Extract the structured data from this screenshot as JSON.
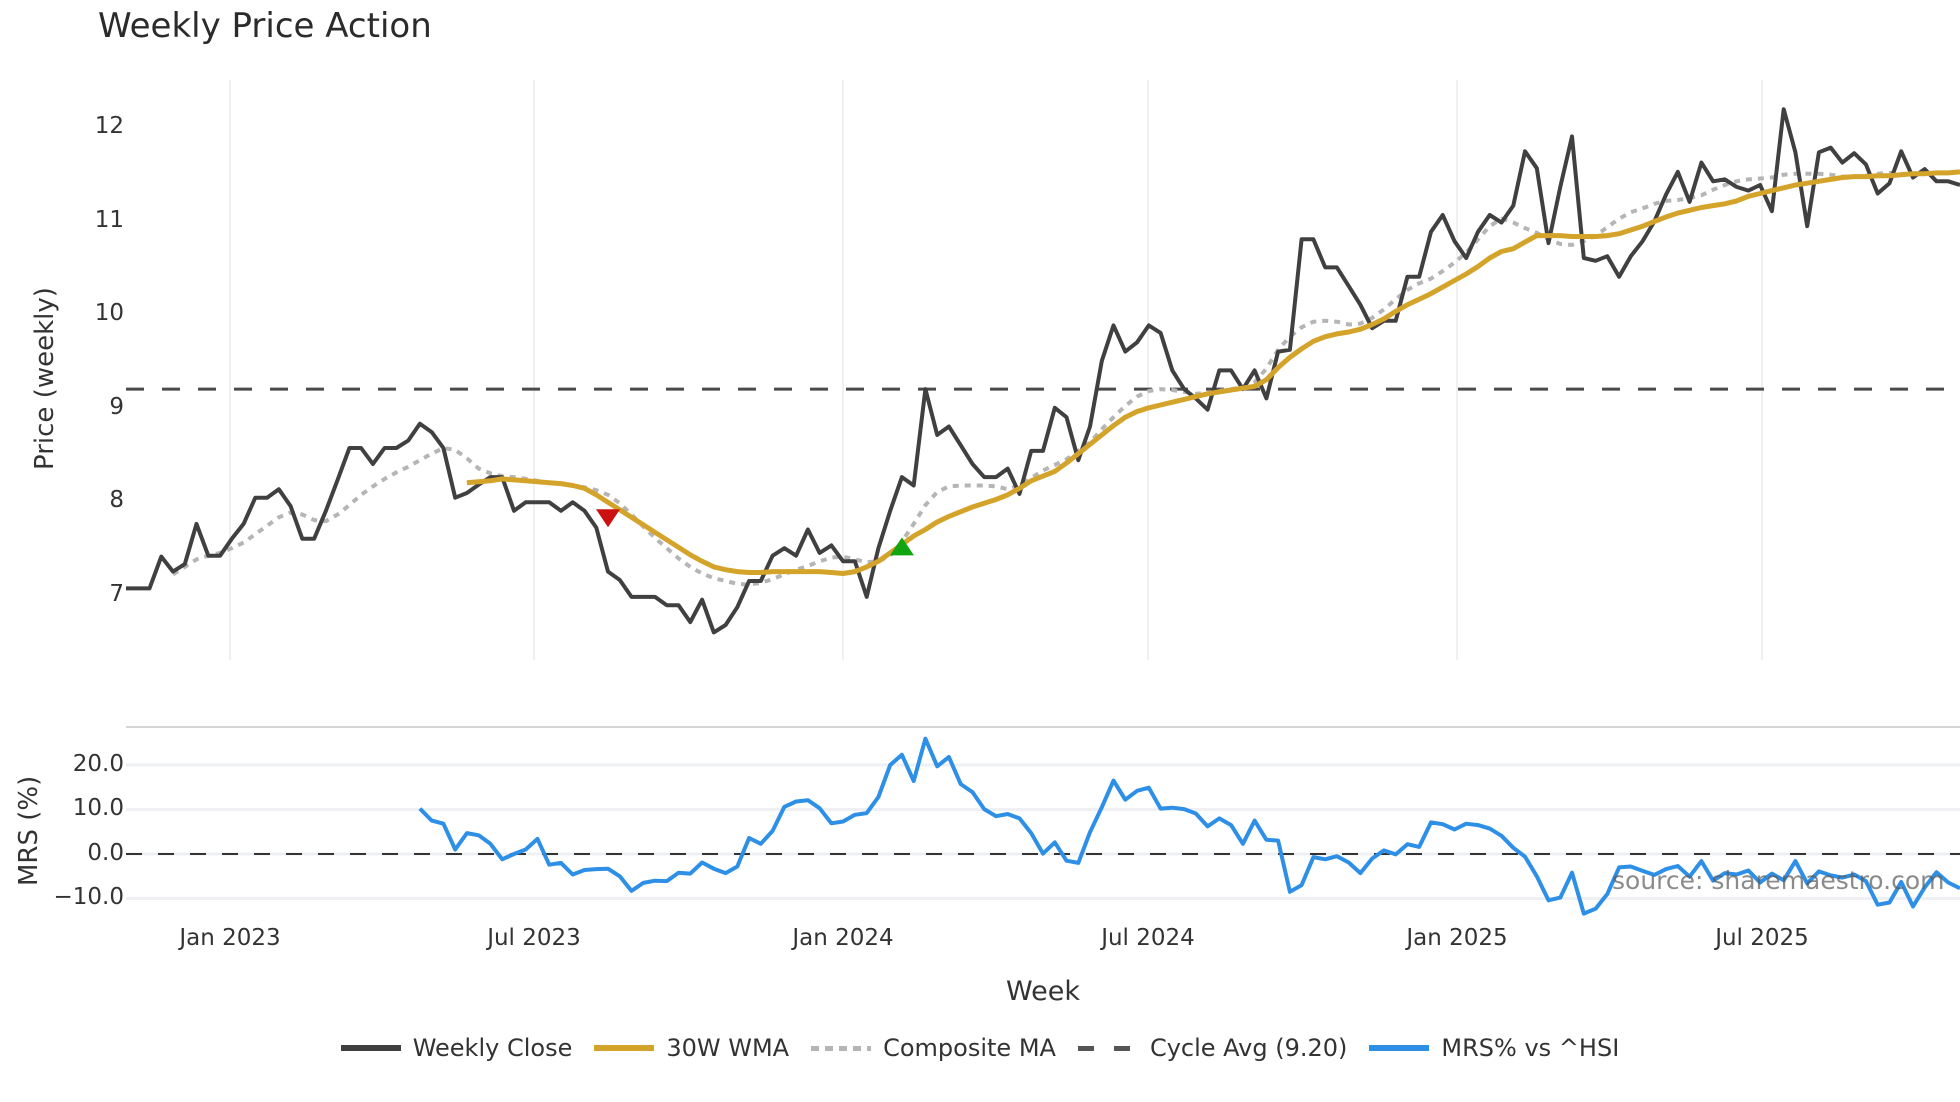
{
  "title": "Weekly Price Action",
  "watermark": "source: sharemaestro.com",
  "colors": {
    "close": "#404040",
    "wma": "#d4a32a",
    "composite": "#b5b5b5",
    "cycle": "#4a4a4a",
    "mrs": "#2e8fe6",
    "sell_marker": "#cc1111",
    "buy_marker": "#11a511",
    "grid": "#eef0f4"
  },
  "upper": {
    "ylabel": "Price (weekly)",
    "yticks": [
      "12",
      "11",
      "10",
      "9",
      "8",
      "7"
    ],
    "ytick_values": [
      12,
      11,
      10,
      9,
      8,
      7
    ]
  },
  "lower": {
    "ylabel": "MRS (%)",
    "yticks": [
      "20.0",
      "10.0",
      "0.0",
      "−10.0"
    ],
    "ytick_values": [
      20,
      10,
      0,
      -10
    ]
  },
  "xaxis": {
    "title": "Week",
    "ticks": [
      "Jan 2023",
      "Jul 2023",
      "Jan 2024",
      "Jul 2024",
      "Jan 2025",
      "Jul 2025"
    ]
  },
  "legend": [
    {
      "label": "Weekly Close",
      "style": "solid",
      "color": "#404040"
    },
    {
      "label": "30W WMA",
      "style": "solid",
      "color": "#d4a32a"
    },
    {
      "label": "Composite MA",
      "style": "dotted",
      "color": "#b5b5b5"
    },
    {
      "label": "Cycle Avg (9.20)",
      "style": "dashed",
      "color": "#555555"
    },
    {
      "label": "MRS% vs ^HSI",
      "style": "solid",
      "color": "#2e8fe6"
    }
  ],
  "chart_data": {
    "type": "line",
    "title": "Weekly Price Action",
    "xlabel": "Week",
    "panels": [
      {
        "name": "price",
        "ylabel": "Price (weekly)",
        "ylim": [
          6.3,
          12.5
        ],
        "x_ticks": [
          "Jan 2023",
          "Jul 2023",
          "Jan 2024",
          "Jul 2024",
          "Jan 2025",
          "Jul 2025"
        ],
        "hline": {
          "name": "Cycle Avg (9.20)",
          "value": 9.2
        },
        "markers": [
          {
            "type": "sell",
            "shape": "triangle-down",
            "index": 41,
            "value": 7.82
          },
          {
            "type": "buy",
            "shape": "triangle-up",
            "index": 66,
            "value": 7.52
          }
        ],
        "series": [
          {
            "name": "Weekly Close",
            "start_index": 0,
            "values": [
              7.07,
              7.07,
              7.07,
              7.41,
              7.25,
              7.33,
              7.76,
              7.42,
              7.42,
              7.6,
              7.76,
              8.04,
              8.04,
              8.13,
              7.95,
              7.6,
              7.6,
              7.9,
              8.23,
              8.57,
              8.57,
              8.4,
              8.57,
              8.57,
              8.65,
              8.83,
              8.74,
              8.57,
              8.04,
              8.09,
              8.18,
              8.26,
              8.26,
              7.9,
              7.99,
              7.99,
              7.99,
              7.9,
              7.99,
              7.9,
              7.72,
              7.25,
              7.16,
              6.98,
              6.98,
              6.98,
              6.89,
              6.89,
              6.71,
              6.95,
              6.6,
              6.68,
              6.87,
              7.15,
              7.15,
              7.42,
              7.5,
              7.42,
              7.7,
              7.45,
              7.53,
              7.36,
              7.36,
              6.98,
              7.5,
              7.9,
              8.26,
              8.17,
              9.2,
              8.71,
              8.8,
              8.6,
              8.4,
              8.26,
              8.26,
              8.35,
              8.08,
              8.54,
              8.54,
              9.0,
              8.9,
              8.44,
              8.8,
              9.5,
              9.88,
              9.6,
              9.7,
              9.88,
              9.8,
              9.4,
              9.2,
              9.1,
              8.98,
              9.4,
              9.4,
              9.2,
              9.4,
              9.1,
              9.6,
              9.62,
              10.8,
              10.8,
              10.5,
              10.5,
              10.3,
              10.1,
              9.85,
              9.93,
              9.93,
              10.4,
              10.4,
              10.88,
              11.06,
              10.78,
              10.6,
              10.88,
              11.06,
              10.98,
              11.16,
              11.74,
              11.56,
              10.76,
              11.36,
              11.9,
              10.6,
              10.57,
              10.62,
              10.4,
              10.62,
              10.78,
              10.99,
              11.28,
              11.52,
              11.2,
              11.62,
              11.42,
              11.44,
              11.36,
              11.32,
              11.38,
              11.1,
              12.19,
              11.73,
              10.94,
              11.73,
              11.78,
              11.62,
              11.72,
              11.6,
              11.29,
              11.4,
              11.74,
              11.46,
              11.55,
              11.42,
              11.42,
              11.38
            ]
          },
          {
            "name": "30W WMA",
            "start_index": 29,
            "values": [
              8.2,
              8.21,
              8.22,
              8.24,
              8.23,
              8.22,
              8.21,
              8.2,
              8.19,
              8.17,
              8.14,
              8.07,
              7.99,
              7.91,
              7.83,
              7.75,
              7.67,
              7.59,
              7.51,
              7.43,
              7.36,
              7.3,
              7.27,
              7.25,
              7.24,
              7.24,
              7.25,
              7.25,
              7.25,
              7.25,
              7.25,
              7.24,
              7.23,
              7.25,
              7.3,
              7.36,
              7.45,
              7.54,
              7.63,
              7.7,
              7.78,
              7.84,
              7.89,
              7.94,
              7.98,
              8.02,
              8.07,
              8.14,
              8.22,
              8.27,
              8.32,
              8.41,
              8.51,
              8.61,
              8.71,
              8.81,
              8.9,
              8.96,
              9.0,
              9.03,
              9.06,
              9.09,
              9.12,
              9.15,
              9.17,
              9.19,
              9.21,
              9.23,
              9.3,
              9.43,
              9.54,
              9.63,
              9.71,
              9.76,
              9.79,
              9.81,
              9.84,
              9.89,
              9.95,
              10.03,
              10.1,
              10.16,
              10.22,
              10.29,
              10.36,
              10.43,
              10.51,
              10.6,
              10.67,
              10.7,
              10.77,
              10.84,
              10.84,
              10.84,
              10.83,
              10.83,
              10.83,
              10.84,
              10.86,
              10.9,
              10.94,
              10.99,
              11.04,
              11.08,
              11.11,
              11.14,
              11.16,
              11.18,
              11.21,
              11.26,
              11.29,
              11.32,
              11.35,
              11.38,
              11.4,
              11.42,
              11.44,
              11.46,
              11.47,
              11.47,
              11.48,
              11.48,
              11.49,
              11.5,
              11.5,
              11.51,
              11.51,
              11.52
            ]
          },
          {
            "name": "Composite MA",
            "start_index": 4,
            "values": [
              7.22,
              7.3,
              7.38,
              7.42,
              7.45,
              7.5,
              7.56,
              7.65,
              7.74,
              7.83,
              7.88,
              7.86,
              7.8,
              7.79,
              7.86,
              7.96,
              8.07,
              8.16,
              8.24,
              8.31,
              8.37,
              8.44,
              8.51,
              8.57,
              8.55,
              8.46,
              8.35,
              8.3,
              8.27,
              8.26,
              8.24,
              8.22,
              8.2,
              8.19,
              8.17,
              8.15,
              8.12,
              8.07,
              7.98,
              7.86,
              7.73,
              7.61,
              7.5,
              7.39,
              7.3,
              7.23,
              7.18,
              7.15,
              7.12,
              7.11,
              7.13,
              7.17,
              7.22,
              7.27,
              7.31,
              7.36,
              7.4,
              7.41,
              7.38,
              7.35,
              7.36,
              7.42,
              7.57,
              7.76,
              7.96,
              8.1,
              8.16,
              8.17,
              8.17,
              8.17,
              8.16,
              8.13,
              8.17,
              8.25,
              8.33,
              8.39,
              8.45,
              8.54,
              8.63,
              8.77,
              8.9,
              9.02,
              9.12,
              9.18,
              9.2,
              9.19,
              9.17,
              9.15,
              9.16,
              9.18,
              9.2,
              9.22,
              9.27,
              9.42,
              9.62,
              9.76,
              9.86,
              9.92,
              9.93,
              9.92,
              9.89,
              9.9,
              9.96,
              10.05,
              10.16,
              10.26,
              10.33,
              10.38,
              10.46,
              10.55,
              10.66,
              10.8,
              10.94,
              11.02,
              10.98,
              10.92,
              10.87,
              10.8,
              10.75,
              10.74,
              10.78,
              10.84,
              10.93,
              11.02,
              11.09,
              11.13,
              11.18,
              11.21,
              11.22,
              11.24,
              11.27,
              11.33,
              11.38,
              11.42,
              11.44,
              11.45,
              11.46,
              11.49,
              11.5,
              11.5,
              11.5,
              11.49,
              11.47,
              11.47,
              11.48,
              11.5,
              11.51,
              11.5,
              11.49
            ]
          },
          {
            "name": "Cycle Avg (9.20)",
            "constant": 9.2
          }
        ]
      },
      {
        "name": "mrs",
        "ylabel": "MRS (%)",
        "ylim": [
          -15,
          28
        ],
        "hline": {
          "name": "zero",
          "value": 0
        },
        "series": [
          {
            "name": "MRS% vs ^HSI",
            "start_index": 25,
            "values": [
              10.2,
              7.5,
              6.8,
              1.0,
              4.7,
              4.2,
              2.3,
              -1.2,
              0.0,
              1.0,
              3.4,
              -2.4,
              -2.0,
              -4.6,
              -3.6,
              -3.4,
              -3.3,
              -5.0,
              -8.3,
              -6.5,
              -6.0,
              -6.1,
              -4.2,
              -4.4,
              -1.9,
              -3.3,
              -4.3,
              -2.8,
              3.6,
              2.3,
              5.2,
              10.6,
              11.8,
              12.1,
              10.3,
              6.9,
              7.3,
              8.8,
              9.2,
              12.8,
              20.0,
              22.3,
              16.4,
              25.9,
              19.7,
              21.8,
              15.7,
              13.9,
              10.1,
              8.5,
              9.0,
              8.0,
              4.7,
              0.1,
              2.6,
              -1.5,
              -2.0,
              4.9,
              10.5,
              16.5,
              12.2,
              14.2,
              14.9,
              10.2,
              10.4,
              10.1,
              9.1,
              6.2,
              8.0,
              6.5,
              2.3,
              7.5,
              3.2,
              3.0,
              -8.5,
              -7.0,
              -0.7,
              -1.2,
              -0.5,
              -1.9,
              -4.3,
              -1.0,
              0.8,
              -0.1,
              2.2,
              1.6,
              7.1,
              6.7,
              5.5,
              6.8,
              6.5,
              5.7,
              4.1,
              1.4,
              -0.6,
              -5.0,
              -10.4,
              -9.8,
              -4.2,
              -13.4,
              -12.3,
              -9.0,
              -3.0,
              -2.8,
              -3.8,
              -4.7,
              -3.4,
              -2.7,
              -5.1,
              -1.6,
              -6.0,
              -4.3,
              -4.6,
              -3.7,
              -6.4,
              -4.4,
              -5.9,
              -1.6,
              -6.6,
              -3.9,
              -4.8,
              -5.3,
              -4.6,
              -6.1,
              -11.4,
              -10.9,
              -6.3,
              -11.8,
              -7.5,
              -4.1,
              -6.4,
              -7.7
            ]
          }
        ]
      }
    ]
  }
}
